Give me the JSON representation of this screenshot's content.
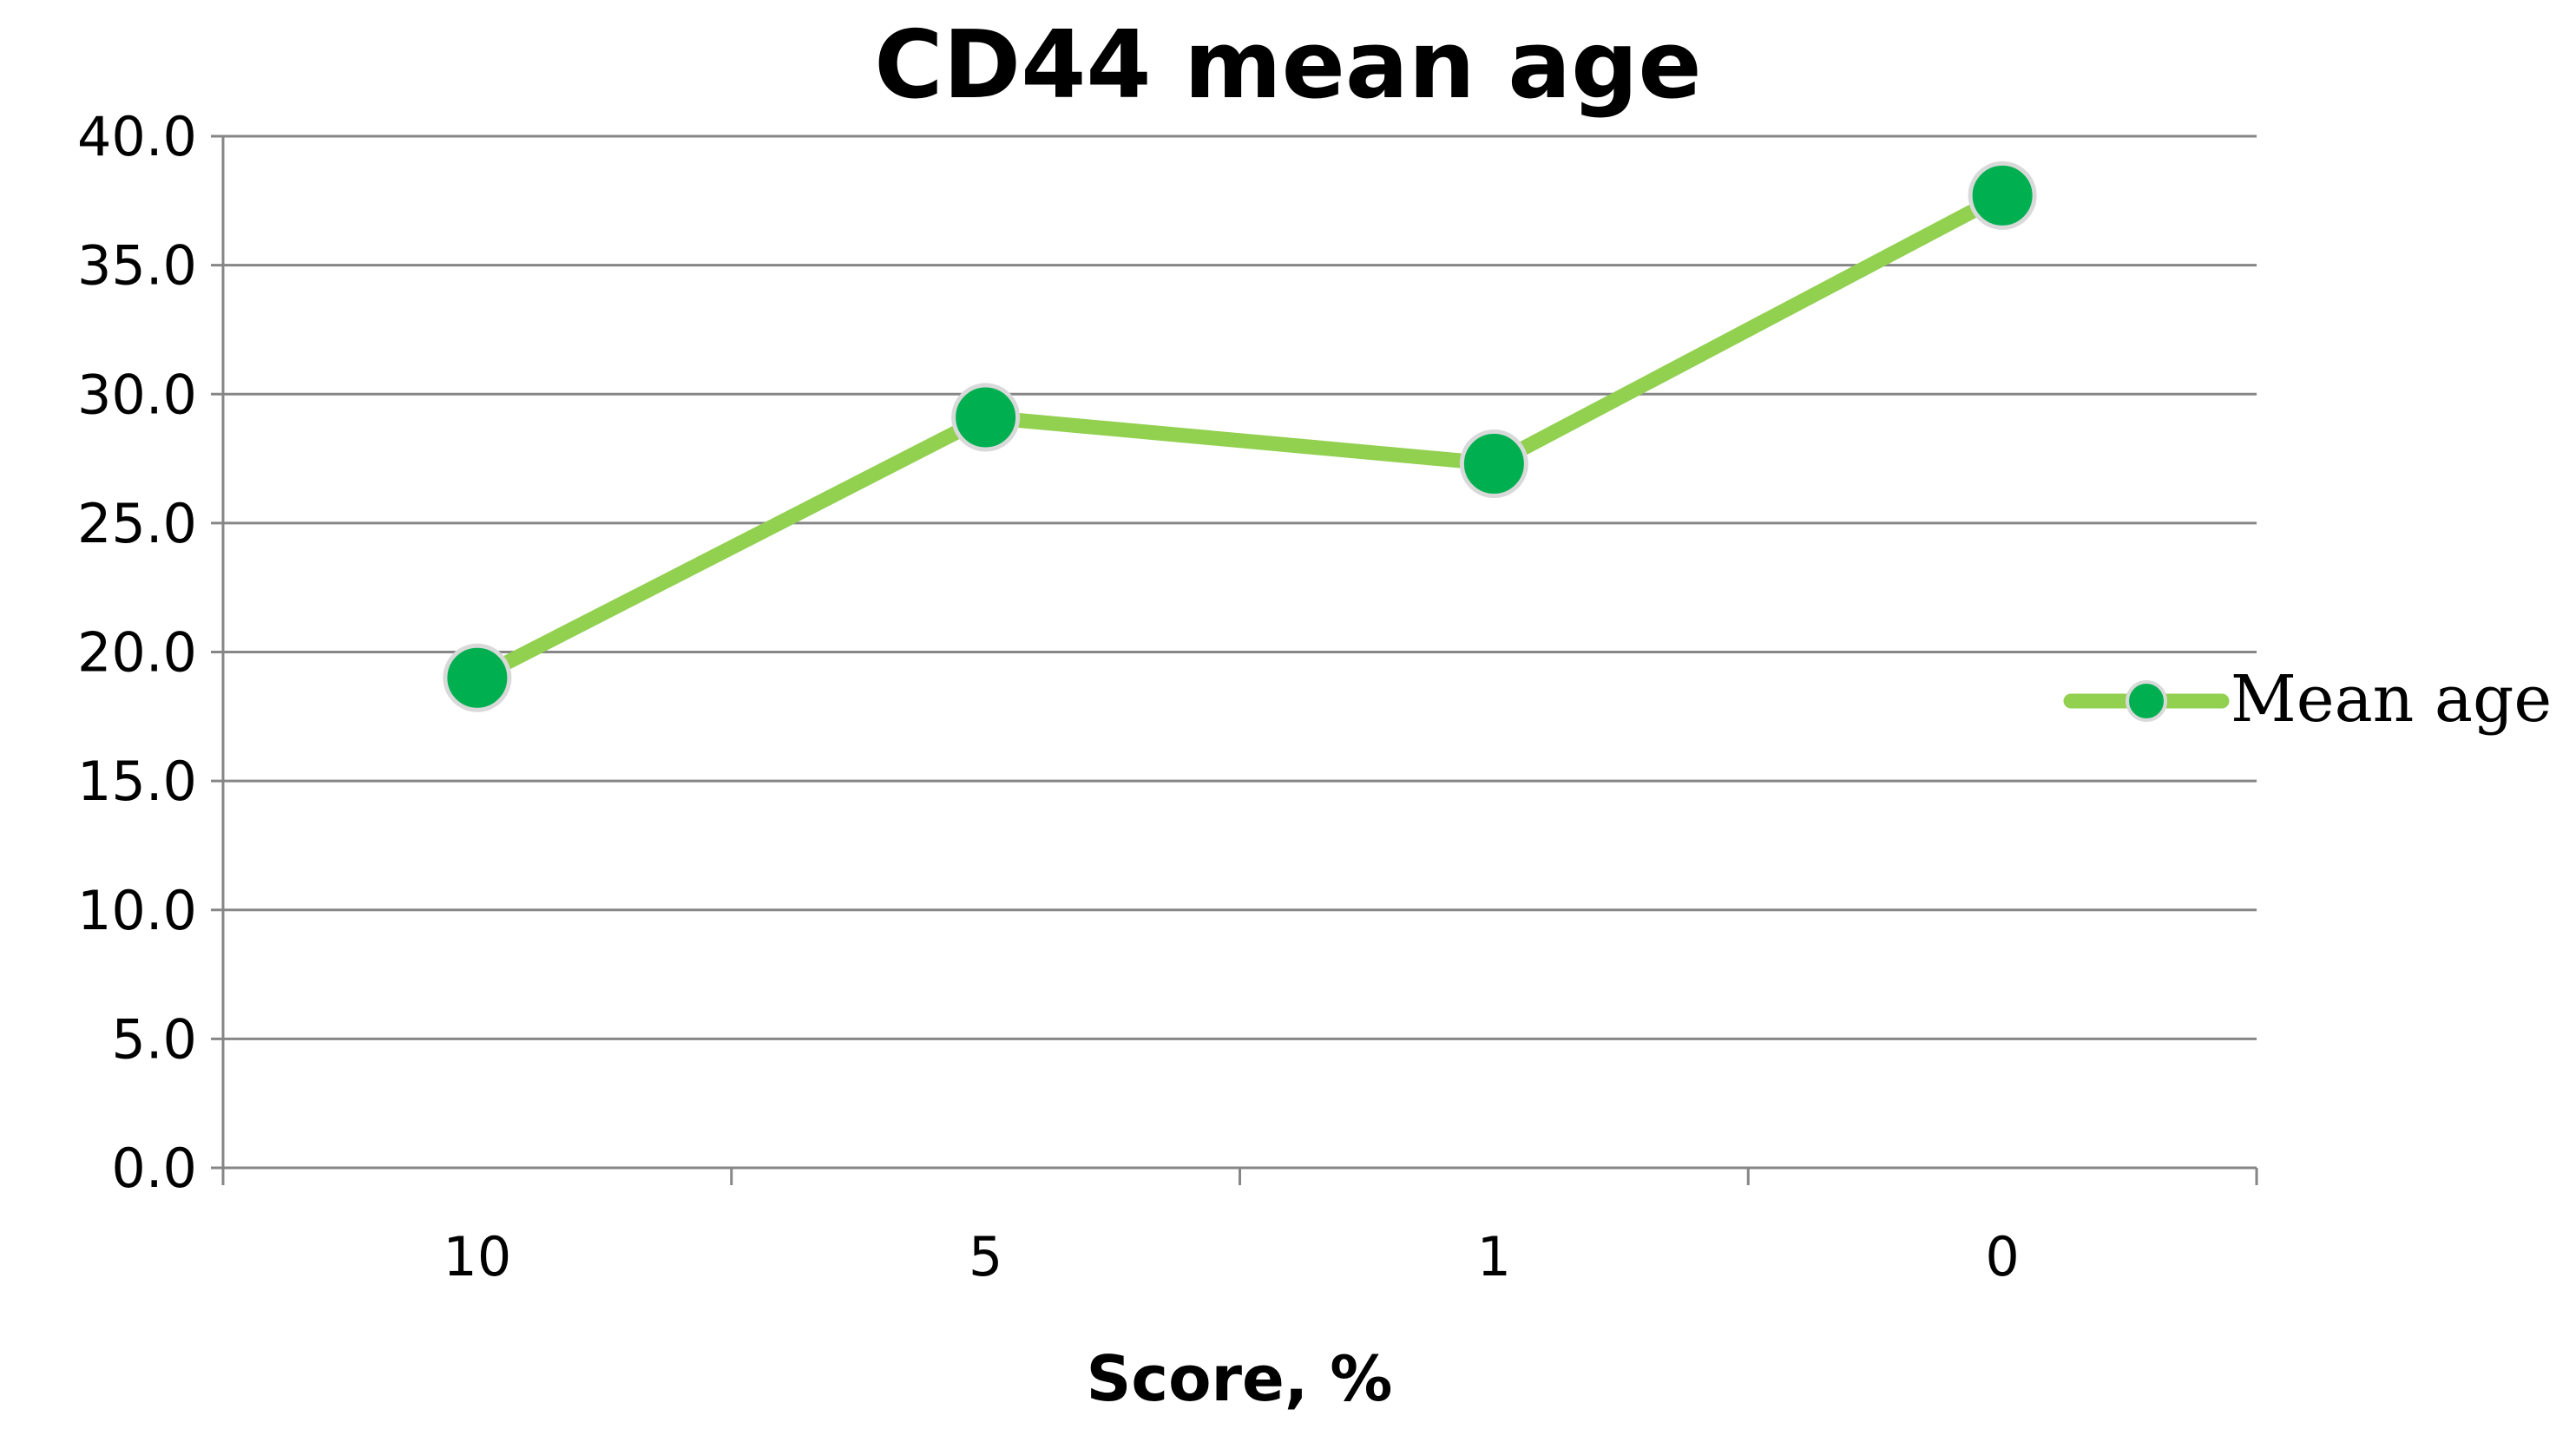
{
  "chart_data": {
    "type": "line",
    "title": "CD44 mean age",
    "xlabel": "Score, %",
    "ylabel": "",
    "categories": [
      "10",
      "5",
      "1",
      "0"
    ],
    "series": [
      {
        "name": "Mean age",
        "values": [
          19.0,
          29.1,
          27.3,
          37.7
        ],
        "line_color": "#92d050",
        "marker_color": "#00b050"
      }
    ],
    "ylim": [
      0,
      40
    ],
    "ytick_labels": [
      "0.0",
      "5.0",
      "10.0",
      "15.0",
      "20.0",
      "25.0",
      "30.0",
      "35.0",
      "40.0"
    ],
    "grid": true,
    "legend_position": "right"
  }
}
